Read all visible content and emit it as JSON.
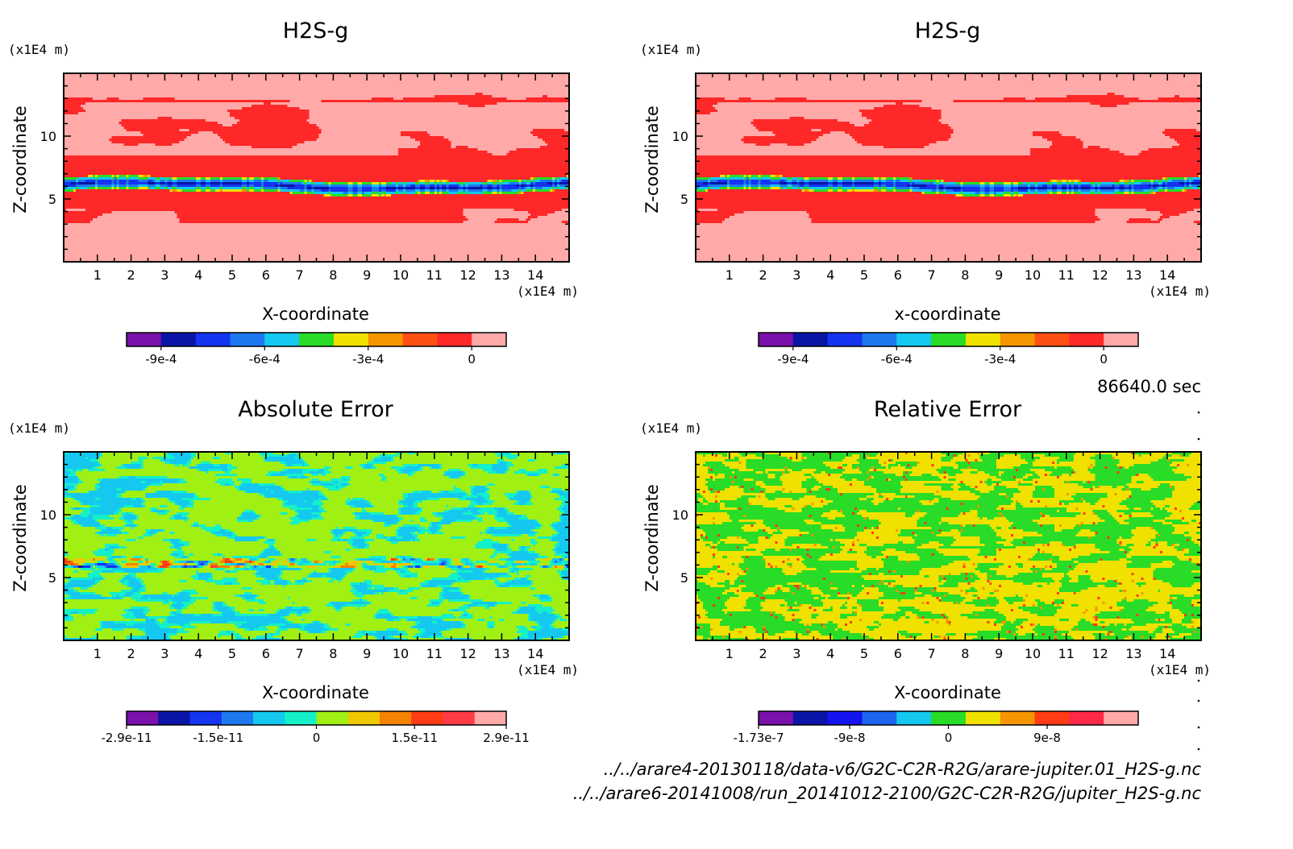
{
  "chart_data": [
    {
      "type": "heatmap",
      "title": "H2S-g",
      "xlabel": "X-coordinate",
      "ylabel": "Z-coordinate",
      "x_unit": "(x1E4 m)",
      "y_unit": "(x1E4 m)",
      "xlim": [
        0,
        15
      ],
      "ylim": [
        0,
        15
      ],
      "xticks": [
        "1",
        "2",
        "3",
        "4",
        "5",
        "6",
        "7",
        "8",
        "9",
        "10",
        "11",
        "12",
        "13",
        "14"
      ],
      "yticks": [
        "5",
        "10"
      ],
      "pattern": "layered",
      "colorbar": {
        "colors": [
          "#7a11aa",
          "#0a14a6",
          "#1434f0",
          "#1e78f0",
          "#14c8f0",
          "#28dc28",
          "#f0e100",
          "#f59600",
          "#ff5014",
          "#ff2828",
          "#ffa9a9"
        ],
        "tick_labels": [
          {
            "label": "-9e-4",
            "value": -0.0009
          },
          {
            "label": "-6e-4",
            "value": -0.0006
          },
          {
            "label": "-3e-4",
            "value": -0.0003
          },
          {
            "label": "0",
            "value": 0
          }
        ],
        "range": [
          -0.001,
          0.0001
        ]
      }
    },
    {
      "type": "heatmap",
      "title": "H2S-g",
      "xlabel": "x-coordinate",
      "ylabel": "Z-coordinate",
      "x_unit": "(x1E4 m)",
      "y_unit": "(x1E4 m)",
      "xlim": [
        0,
        15
      ],
      "ylim": [
        0,
        15
      ],
      "xticks": [
        "1",
        "2",
        "3",
        "4",
        "5",
        "6",
        "7",
        "8",
        "9",
        "10",
        "11",
        "12",
        "13",
        "14"
      ],
      "yticks": [
        "5",
        "10"
      ],
      "pattern": "layered",
      "colorbar": {
        "colors": [
          "#7a11aa",
          "#0a14a6",
          "#1434f0",
          "#1e78f0",
          "#14c8f0",
          "#28dc28",
          "#f0e100",
          "#f59600",
          "#ff5014",
          "#ff2828",
          "#ffa9a9"
        ],
        "tick_labels": [
          {
            "label": "-9e-4",
            "value": -0.0009
          },
          {
            "label": "-6e-4",
            "value": -0.0006
          },
          {
            "label": "-3e-4",
            "value": -0.0003
          },
          {
            "label": "0",
            "value": 0
          }
        ],
        "range": [
          -0.001,
          0.0001
        ]
      }
    },
    {
      "type": "heatmap",
      "title": "Absolute Error",
      "xlabel": "X-coordinate",
      "ylabel": "Z-coordinate",
      "x_unit": "(x1E4 m)",
      "y_unit": "(x1E4 m)",
      "xlim": [
        0,
        15
      ],
      "ylim": [
        0,
        15
      ],
      "xticks": [
        "1",
        "2",
        "3",
        "4",
        "5",
        "6",
        "7",
        "8",
        "9",
        "10",
        "11",
        "12",
        "13",
        "14"
      ],
      "yticks": [
        "5",
        "10"
      ],
      "pattern": "abs-noise",
      "colorbar": {
        "colors": [
          "#7a11aa",
          "#0a14a6",
          "#1434f0",
          "#1e78f0",
          "#14c8f0",
          "#14f0c8",
          "#a0f014",
          "#f0c800",
          "#f58200",
          "#ff3c14",
          "#ff3c46",
          "#ffa9a9"
        ],
        "tick_labels": [
          {
            "label": "-2.9e-11",
            "value": -2.9e-11
          },
          {
            "label": "-1.5e-11",
            "value": -1.5e-11
          },
          {
            "label": "0",
            "value": 0
          },
          {
            "label": "1.5e-11",
            "value": 1.5e-11
          },
          {
            "label": "2.9e-11",
            "value": 2.9e-11
          }
        ],
        "range": [
          -2.9e-11,
          2.9e-11
        ]
      }
    },
    {
      "type": "heatmap",
      "title": "Relative Error",
      "xlabel": "X-coordinate",
      "ylabel": "Z-coordinate",
      "x_unit": "(x1E4 m)",
      "y_unit": "(x1E4 m)",
      "xlim": [
        0,
        15
      ],
      "ylim": [
        0,
        15
      ],
      "xticks": [
        "1",
        "2",
        "3",
        "4",
        "5",
        "6",
        "7",
        "8",
        "9",
        "10",
        "11",
        "12",
        "13",
        "14"
      ],
      "yticks": [
        "5",
        "10"
      ],
      "pattern": "rel-noise",
      "colorbar": {
        "colors": [
          "#7a11aa",
          "#0a14a6",
          "#1414f0",
          "#1e64f0",
          "#14c8f0",
          "#28dc28",
          "#f0e100",
          "#f59600",
          "#ff3c14",
          "#ff2846",
          "#ffa9a9"
        ],
        "tick_labels": [
          {
            "label": "-1.73e-7",
            "value": -1.73e-07
          },
          {
            "label": "-9e-8",
            "value": -9e-08
          },
          {
            "label": "0",
            "value": 0
          },
          {
            "label": "9e-8",
            "value": 9e-08
          }
        ],
        "range": [
          -1.73e-07,
          1.73e-07
        ]
      }
    }
  ],
  "time_label": "86640.0 sec",
  "footer_lines": [
    "../../arare4-20130118/data-v6/G2C-C2R-R2G/arare-jupiter.01_H2S-g.nc",
    "../../arare6-20141008/run_20141012-2100/G2C-C2R-R2G/jupiter_H2S-g.nc"
  ]
}
